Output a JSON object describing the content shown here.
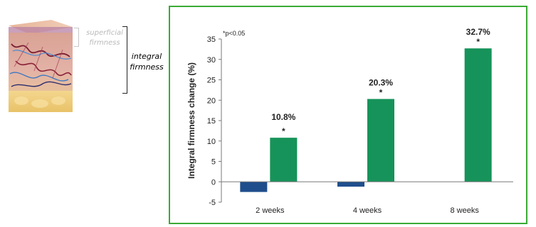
{
  "skin": {
    "superficial_label": "superficial firmness",
    "integral_label": "integral firmness"
  },
  "chart_data": {
    "type": "bar",
    "categories": [
      "2 weeks",
      "4 weeks",
      "8 weeks"
    ],
    "series": [
      {
        "values": [
          -2.5,
          -1.2,
          null
        ],
        "color": "#1f4e8c"
      },
      {
        "values": [
          10.8,
          20.3,
          32.7
        ],
        "color": "#16935a"
      }
    ],
    "data_labels": [
      "10.8%",
      "20.3%",
      "32.7%"
    ],
    "significance_marks": [
      "*",
      "*",
      "*"
    ],
    "note": "*p<0.05",
    "ylabel": "Integral firmness change (%)",
    "xlabel": "",
    "ylim": [
      -5,
      35
    ],
    "yticks": [
      "35",
      "30",
      "25",
      "20",
      "15",
      "10",
      "5",
      "0",
      "-5"
    ],
    "grid": false,
    "border_color": "#3aaa35"
  }
}
